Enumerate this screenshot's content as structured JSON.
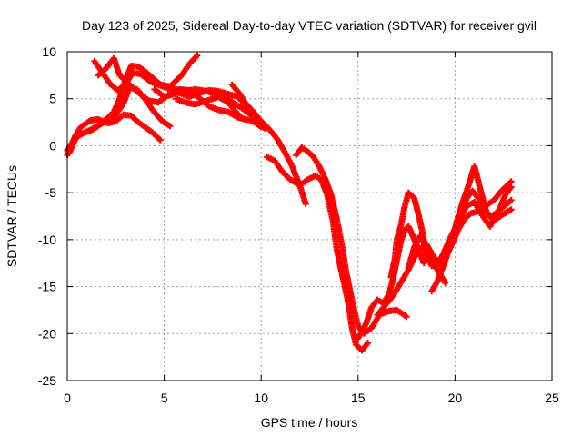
{
  "chart_data": {
    "type": "scatter",
    "title": "Day 123 of 2025, Sidereal Day-to-day VTEC variation (SDTVAR) for receiver gvil",
    "xlabel": "GPS time / hours",
    "ylabel": "SDTVAR / TECUs",
    "xlim": [
      0,
      25
    ],
    "ylim": [
      -25,
      10
    ],
    "xticks": [
      0,
      5,
      10,
      15,
      20,
      25
    ],
    "yticks": [
      -25,
      -20,
      -15,
      -10,
      -5,
      0,
      5,
      10
    ],
    "xtick_labels": [
      "0",
      "5",
      "10",
      "15",
      "20",
      "25"
    ],
    "ytick_labels": [
      "-25",
      "-20",
      "-15",
      "-10",
      "-5",
      "0",
      "5",
      "10"
    ],
    "grid": true,
    "marker": "+",
    "series": [
      {
        "color": "#ff0000",
        "points": [
          [
            0.0,
            -1.0
          ],
          [
            0.4,
            1.0
          ],
          [
            0.7,
            2.0
          ],
          [
            1.2,
            2.7
          ],
          [
            1.6,
            2.8
          ],
          [
            2.1,
            2.4
          ],
          [
            2.5,
            2.6
          ],
          [
            2.9,
            3.3
          ],
          [
            3.3,
            3.2
          ],
          [
            3.6,
            2.6
          ],
          [
            4.0,
            2.0
          ],
          [
            4.4,
            1.4
          ],
          [
            4.8,
            0.6
          ]
        ]
      },
      {
        "color": "#ff0000",
        "points": [
          [
            0.1,
            -0.8
          ],
          [
            0.5,
            1.1
          ],
          [
            0.9,
            1.4
          ],
          [
            1.4,
            1.9
          ],
          [
            1.9,
            2.5
          ],
          [
            2.4,
            3.0
          ],
          [
            2.9,
            4.5
          ],
          [
            3.2,
            6.2
          ],
          [
            3.6,
            6.0
          ],
          [
            4.0,
            5.0
          ],
          [
            4.4,
            3.8
          ],
          [
            4.9,
            2.6
          ],
          [
            5.3,
            2.1
          ]
        ]
      },
      {
        "color": "#ff0000",
        "points": [
          [
            0.0,
            -0.5
          ],
          [
            0.4,
            0.8
          ],
          [
            0.8,
            1.3
          ],
          [
            1.4,
            1.8
          ],
          [
            2.0,
            2.8
          ],
          [
            2.4,
            3.6
          ],
          [
            2.7,
            5.0
          ],
          [
            3.0,
            7.0
          ],
          [
            3.3,
            8.5
          ],
          [
            3.7,
            8.4
          ],
          [
            4.2,
            7.5
          ],
          [
            4.7,
            6.6
          ],
          [
            5.3,
            6.2
          ],
          [
            5.8,
            5.9
          ]
        ]
      },
      {
        "color": "#ff0000",
        "points": [
          [
            1.4,
            9.0
          ],
          [
            1.8,
            7.8
          ],
          [
            2.2,
            6.6
          ],
          [
            2.6,
            5.9
          ],
          [
            3.0,
            6.5
          ],
          [
            3.4,
            7.8
          ],
          [
            3.8,
            7.6
          ],
          [
            4.3,
            6.8
          ],
          [
            4.8,
            6.4
          ],
          [
            5.3,
            6.0
          ],
          [
            5.8,
            5.6
          ],
          [
            6.3,
            5.2
          ],
          [
            6.8,
            5.6
          ],
          [
            7.3,
            5.9
          ],
          [
            7.8,
            5.8
          ],
          [
            8.3,
            5.5
          ],
          [
            8.8,
            5.2
          ],
          [
            9.2,
            4.3
          ]
        ]
      },
      {
        "color": "#ff0000",
        "points": [
          [
            1.6,
            7.5
          ],
          [
            2.0,
            8.2
          ],
          [
            2.4,
            9.3
          ],
          [
            2.7,
            7.5
          ],
          [
            3.2,
            6.5
          ],
          [
            3.7,
            5.6
          ],
          [
            4.2,
            4.8
          ],
          [
            4.7,
            4.6
          ],
          [
            5.2,
            5.4
          ],
          [
            5.8,
            6.0
          ],
          [
            6.3,
            5.9
          ],
          [
            6.8,
            5.1
          ],
          [
            7.3,
            4.2
          ],
          [
            7.8,
            3.8
          ],
          [
            8.3,
            3.6
          ],
          [
            8.8,
            3.0
          ],
          [
            9.2,
            2.8
          ]
        ]
      },
      {
        "color": "#ff0000",
        "points": [
          [
            3.9,
            8.1
          ],
          [
            4.3,
            7.4
          ],
          [
            4.8,
            6.5
          ],
          [
            5.3,
            6.3
          ],
          [
            5.9,
            7.5
          ],
          [
            6.3,
            8.7
          ],
          [
            6.7,
            9.6
          ]
        ]
      },
      {
        "color": "#ff0000",
        "points": [
          [
            4.5,
            6.0
          ],
          [
            5.0,
            5.2
          ],
          [
            5.5,
            5.5
          ],
          [
            6.0,
            5.8
          ],
          [
            6.6,
            6.0
          ],
          [
            7.2,
            5.8
          ],
          [
            7.8,
            5.3
          ],
          [
            8.4,
            4.8
          ],
          [
            9.0,
            4.0
          ],
          [
            9.4,
            3.4
          ],
          [
            9.8,
            2.6
          ],
          [
            10.2,
            1.8
          ]
        ]
      },
      {
        "color": "#ff0000",
        "points": [
          [
            5.6,
            5.0
          ],
          [
            6.1,
            4.6
          ],
          [
            6.6,
            4.4
          ],
          [
            7.2,
            4.8
          ],
          [
            7.8,
            5.2
          ],
          [
            8.3,
            4.6
          ],
          [
            8.7,
            3.6
          ],
          [
            9.0,
            2.9
          ],
          [
            9.5,
            2.7
          ],
          [
            10.0,
            2.0
          ]
        ]
      },
      {
        "color": "#ff0000",
        "points": [
          [
            8.5,
            6.5
          ],
          [
            8.9,
            5.5
          ],
          [
            9.2,
            4.5
          ],
          [
            9.6,
            3.6
          ],
          [
            10.0,
            2.6
          ],
          [
            10.4,
            1.8
          ],
          [
            10.8,
            0.8
          ],
          [
            11.2,
            -0.6
          ],
          [
            11.6,
            -2.2
          ],
          [
            12.0,
            -4.3
          ],
          [
            12.3,
            -6.2
          ]
        ]
      },
      {
        "color": "#ff0000",
        "points": [
          [
            10.3,
            -1.2
          ],
          [
            10.7,
            -1.6
          ],
          [
            11.1,
            -2.8
          ],
          [
            11.5,
            -3.6
          ],
          [
            12.0,
            -4.2
          ],
          [
            12.4,
            -3.6
          ],
          [
            12.8,
            -3.2
          ],
          [
            13.1,
            -3.6
          ],
          [
            13.4,
            -5.2
          ],
          [
            13.7,
            -8.0
          ],
          [
            13.9,
            -11.0
          ],
          [
            14.1,
            -13.0
          ],
          [
            14.3,
            -14.8
          ],
          [
            14.5,
            -16.8
          ],
          [
            14.7,
            -19.5
          ],
          [
            14.9,
            -21.2
          ],
          [
            15.2,
            -21.8
          ],
          [
            15.5,
            -21.0
          ]
        ]
      },
      {
        "color": "#ff0000",
        "points": [
          [
            11.8,
            -1.0
          ],
          [
            12.1,
            -0.2
          ],
          [
            12.4,
            -0.6
          ],
          [
            12.7,
            -1.2
          ],
          [
            13.0,
            -2.2
          ],
          [
            13.3,
            -3.5
          ],
          [
            13.6,
            -5.2
          ],
          [
            13.9,
            -7.8
          ],
          [
            14.2,
            -11.0
          ],
          [
            14.4,
            -13.6
          ],
          [
            14.6,
            -15.6
          ],
          [
            14.8,
            -17.5
          ],
          [
            15.0,
            -19.2
          ],
          [
            15.3,
            -20.0
          ],
          [
            15.7,
            -19.4
          ],
          [
            16.1,
            -18.0
          ],
          [
            16.6,
            -17.6
          ],
          [
            17.0,
            -17.5
          ],
          [
            17.5,
            -18.2
          ]
        ]
      },
      {
        "color": "#ff0000",
        "points": [
          [
            15.0,
            -20.5
          ],
          [
            15.4,
            -19.0
          ],
          [
            15.7,
            -17.2
          ],
          [
            16.0,
            -16.4
          ],
          [
            16.3,
            -16.8
          ],
          [
            16.6,
            -15.8
          ],
          [
            16.8,
            -14.2
          ],
          [
            17.0,
            -12.2
          ],
          [
            17.2,
            -10.2
          ],
          [
            17.4,
            -9.0
          ],
          [
            17.6,
            -8.6
          ],
          [
            17.8,
            -9.5
          ],
          [
            18.1,
            -11.0
          ],
          [
            18.4,
            -12.5
          ]
        ]
      },
      {
        "color": "#ff0000",
        "points": [
          [
            16.7,
            -14.0
          ],
          [
            16.9,
            -12.0
          ],
          [
            17.0,
            -10.0
          ],
          [
            17.2,
            -8.6
          ],
          [
            17.4,
            -6.5
          ],
          [
            17.6,
            -5.0
          ],
          [
            17.9,
            -5.6
          ],
          [
            18.1,
            -7.2
          ],
          [
            18.3,
            -9.0
          ],
          [
            18.5,
            -11.5
          ],
          [
            18.8,
            -12.8
          ]
        ]
      },
      {
        "color": "#ff0000",
        "points": [
          [
            16.0,
            -18.0
          ],
          [
            16.4,
            -17.0
          ],
          [
            16.8,
            -16.0
          ],
          [
            17.2,
            -14.6
          ],
          [
            17.6,
            -13.2
          ],
          [
            18.0,
            -11.5
          ],
          [
            18.4,
            -10.6
          ],
          [
            18.8,
            -12.2
          ],
          [
            19.2,
            -13.6
          ],
          [
            19.5,
            -14.6
          ]
        ]
      },
      {
        "color": "#ff0000",
        "points": [
          [
            17.6,
            -13.0
          ],
          [
            17.9,
            -10.8
          ],
          [
            18.2,
            -9.6
          ],
          [
            18.5,
            -10.4
          ],
          [
            18.9,
            -11.8
          ],
          [
            19.2,
            -12.6
          ],
          [
            19.5,
            -12.0
          ],
          [
            19.9,
            -10.2
          ],
          [
            20.2,
            -8.8
          ],
          [
            20.5,
            -7.8
          ],
          [
            20.8,
            -7.2
          ],
          [
            21.2,
            -7.0
          ],
          [
            21.6,
            -6.4
          ],
          [
            22.0,
            -5.8
          ],
          [
            22.4,
            -4.8
          ],
          [
            22.9,
            -3.8
          ]
        ]
      },
      {
        "color": "#ff0000",
        "points": [
          [
            18.8,
            -15.5
          ],
          [
            19.1,
            -14.4
          ],
          [
            19.4,
            -12.8
          ],
          [
            19.7,
            -11.0
          ],
          [
            20.0,
            -9.2
          ],
          [
            20.3,
            -7.2
          ],
          [
            20.6,
            -5.6
          ],
          [
            20.9,
            -4.8
          ],
          [
            21.2,
            -5.6
          ],
          [
            21.5,
            -6.6
          ],
          [
            21.8,
            -7.6
          ],
          [
            22.1,
            -7.2
          ],
          [
            22.5,
            -6.5
          ],
          [
            22.9,
            -5.8
          ]
        ]
      },
      {
        "color": "#ff0000",
        "points": [
          [
            19.8,
            -10.5
          ],
          [
            20.1,
            -8.0
          ],
          [
            20.4,
            -6.0
          ],
          [
            20.7,
            -4.2
          ],
          [
            21.0,
            -2.2
          ],
          [
            21.3,
            -4.6
          ],
          [
            21.6,
            -7.0
          ],
          [
            22.0,
            -8.0
          ],
          [
            22.4,
            -7.4
          ],
          [
            22.9,
            -6.8
          ]
        ]
      },
      {
        "color": "#ff0000",
        "points": [
          [
            19.0,
            -13.0
          ],
          [
            19.4,
            -11.5
          ],
          [
            19.8,
            -9.6
          ],
          [
            20.2,
            -8.0
          ],
          [
            20.6,
            -6.4
          ],
          [
            21.0,
            -6.0
          ],
          [
            21.4,
            -7.4
          ],
          [
            21.8,
            -8.6
          ],
          [
            22.2,
            -7.2
          ],
          [
            22.6,
            -5.2
          ],
          [
            22.9,
            -4.4
          ]
        ]
      }
    ]
  }
}
